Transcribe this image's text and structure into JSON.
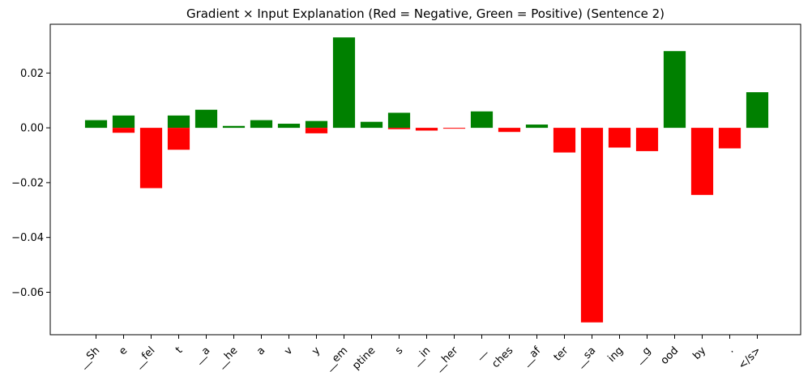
{
  "chart_data": {
    "type": "bar",
    "title": "Gradient × Input Explanation (Red = Negative, Green = Positive) (Sentence 2)",
    "xlabel": "",
    "ylabel": "",
    "categories": [
      "__Sh",
      "e",
      "__fel",
      "t",
      "__a",
      "__he",
      "a",
      "v",
      "y",
      "__em",
      "ptine",
      "s",
      "__in",
      "__her",
      "__",
      "ches",
      "__af",
      "ter",
      "__sa",
      "ing",
      "__g",
      "ood",
      "by",
      ".",
      "</s>"
    ],
    "series": [
      {
        "color": "#008000",
        "values": [
          0.0028,
          0.0045,
          0,
          0.0045,
          0.0066,
          0.0007,
          0.0028,
          0.0015,
          0.0025,
          0.033,
          0.0022,
          0.0055,
          0,
          0,
          0.006,
          0,
          0.0012,
          0,
          0,
          0,
          0,
          0.028,
          0,
          0,
          0.013
        ]
      },
      {
        "color": "#ff0000",
        "values": [
          0,
          -0.0018,
          -0.022,
          -0.008,
          0,
          0,
          0,
          0,
          -0.002,
          0,
          0,
          -0.0005,
          -0.001,
          -0.0003,
          0,
          -0.0015,
          0,
          -0.009,
          -0.071,
          -0.0072,
          -0.0085,
          0,
          -0.0245,
          -0.0075,
          0
        ]
      }
    ],
    "ylim": [
      -0.0755,
      0.0378
    ],
    "yticks": [
      -0.06,
      -0.04,
      -0.02,
      0.0,
      0.02
    ],
    "ytick_labels": [
      "−0.06",
      "−0.04",
      "−0.02",
      "0.00",
      "0.02"
    ],
    "grid": false,
    "legend": "none"
  }
}
